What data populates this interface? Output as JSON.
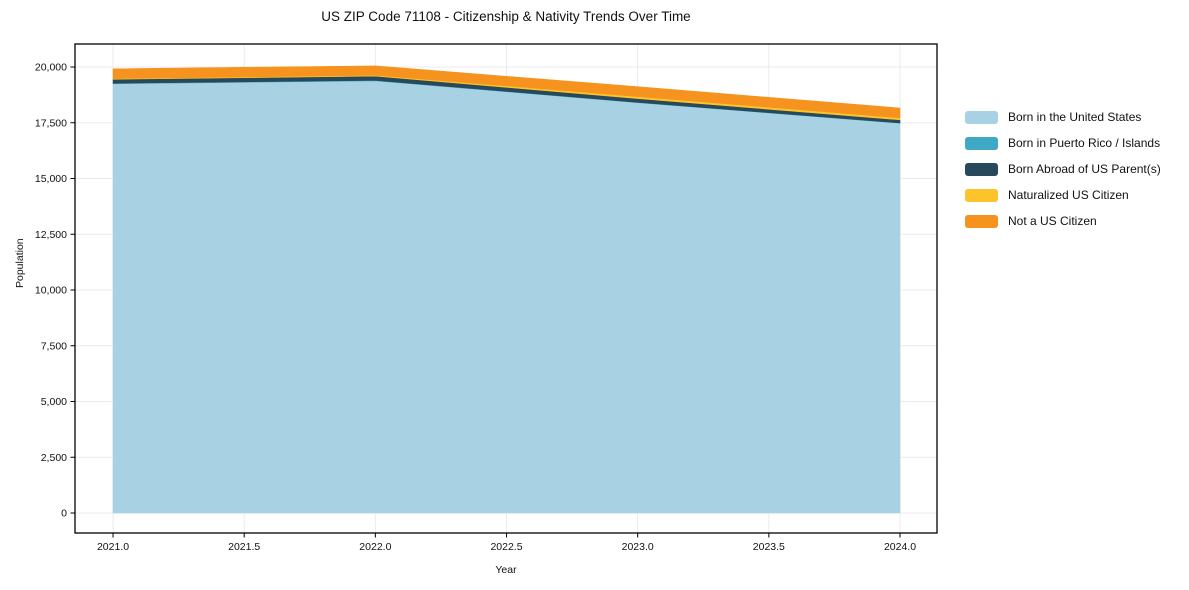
{
  "title": "US ZIP Code 71108 - Citizenship & Nativity Trends Over Time",
  "axes": {
    "xlabel": "Year",
    "ylabel": "Population",
    "x_ticks": [
      {
        "value": 2021.0,
        "label": "2021.0"
      },
      {
        "value": 2021.5,
        "label": "2021.5"
      },
      {
        "value": 2022.0,
        "label": "2022.0"
      },
      {
        "value": 2022.5,
        "label": "2022.5"
      },
      {
        "value": 2023.0,
        "label": "2023.0"
      },
      {
        "value": 2023.5,
        "label": "2023.5"
      },
      {
        "value": 2024.0,
        "label": "2024.0"
      }
    ],
    "y_ticks": [
      {
        "value": 0,
        "label": "0"
      },
      {
        "value": 2500,
        "label": "2,500"
      },
      {
        "value": 5000,
        "label": "5,000"
      },
      {
        "value": 7500,
        "label": "7,500"
      },
      {
        "value": 10000,
        "label": "10,000"
      },
      {
        "value": 12500,
        "label": "12,500"
      },
      {
        "value": 15000,
        "label": "15,000"
      },
      {
        "value": 17500,
        "label": "17,500"
      },
      {
        "value": 20000,
        "label": "20,000"
      }
    ]
  },
  "legend": {
    "position": "right-outside"
  },
  "chart_data": {
    "type": "area",
    "stacked": true,
    "title": "US ZIP Code 71108 - Citizenship & Nativity Trends Over Time",
    "xlabel": "Year",
    "ylabel": "Population",
    "x": [
      2021,
      2022,
      2023,
      2024
    ],
    "xlim": [
      2020.855,
      2024.141
    ],
    "ylim": [
      -897,
      21031
    ],
    "grid": true,
    "grid_color": "#ebebeb",
    "spine_color": "#000000",
    "legend_position": "right-outside",
    "series": [
      {
        "name": "Born in the United States",
        "color": "#a8d2e4",
        "values": [
          19250,
          19380,
          18400,
          17480
        ]
      },
      {
        "name": "Born in Puerto Rico / Islands",
        "color": "#3fa8c4",
        "values": [
          20,
          20,
          15,
          10
        ]
      },
      {
        "name": "Born Abroad of US Parent(s)",
        "color": "#28495c",
        "values": [
          180,
          190,
          170,
          140
        ]
      },
      {
        "name": "Naturalized US Citizen",
        "color": "#fcc32b",
        "values": [
          30,
          40,
          90,
          90
        ]
      },
      {
        "name": "Not a US Citizen",
        "color": "#f6921e",
        "values": [
          440,
          420,
          440,
          440
        ]
      }
    ],
    "totals": [
      19920,
      20050,
      19115,
      18160
    ]
  }
}
